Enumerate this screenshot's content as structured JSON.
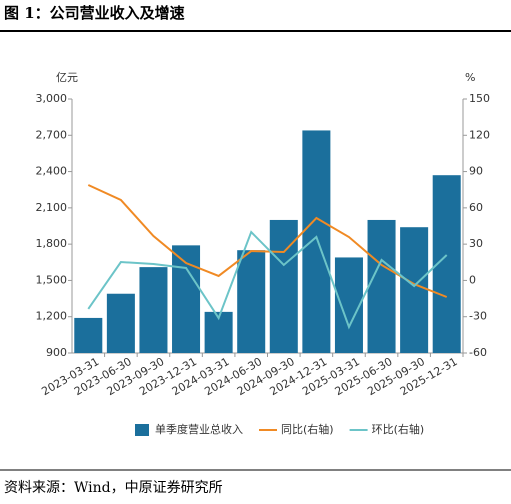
{
  "title": "图 1：公司营业收入及增速",
  "source": "资料来源：Wind，中原证券研究所",
  "chart_data": {
    "type": "bar",
    "y_label": "亿元",
    "y2_label": "%",
    "categories": [
      "2023-03-31",
      "2023-06-30",
      "2023-09-30",
      "2023-12-31",
      "2024-03-31",
      "2024-06-30",
      "2024-09-30",
      "2024-12-31",
      "2025-03-31",
      "2025-06-30",
      "2025-09-30",
      "2025-12-31"
    ],
    "series": [
      {
        "name": "单季度营业总收入",
        "type": "bar",
        "color": "#1b6f9c",
        "values": [
          1190,
          1390,
          1610,
          1790,
          1240,
          1750,
          2000,
          2740,
          1690,
          2000,
          1940,
          2370
        ]
      },
      {
        "name": "同比(右轴)",
        "type": "line",
        "axis": "y2",
        "color": "#f08a24",
        "values": [
          78.9,
          66.5,
          36.7,
          14.4,
          3.7,
          24.3,
          23.5,
          51.6,
          35.9,
          12.8,
          -3,
          -13.7
        ]
      },
      {
        "name": "环比(右轴)",
        "type": "line",
        "axis": "y2",
        "color": "#6cc4c8",
        "values": [
          -23.6,
          15.2,
          13.6,
          10.3,
          -31.1,
          40,
          12.8,
          35.9,
          -38.5,
          16.9,
          -4.6,
          21
        ]
      }
    ],
    "ylim": [
      900,
      3000
    ],
    "yticks": [
      {
        "value": 900,
        "label": "900"
      },
      {
        "value": 1200,
        "label": "1,200"
      },
      {
        "value": 1500,
        "label": "1,500"
      },
      {
        "value": 1800,
        "label": "1,800"
      },
      {
        "value": 2100,
        "label": "2,100"
      },
      {
        "value": 2400,
        "label": "2,400"
      },
      {
        "value": 2700,
        "label": "2,700"
      },
      {
        "value": 3000,
        "label": "3,000"
      }
    ],
    "y2lim": [
      -60,
      150
    ],
    "y2ticks": [
      -60,
      -30,
      0,
      30,
      60,
      90,
      120,
      150
    ],
    "grid": false,
    "legend": "bottom"
  }
}
